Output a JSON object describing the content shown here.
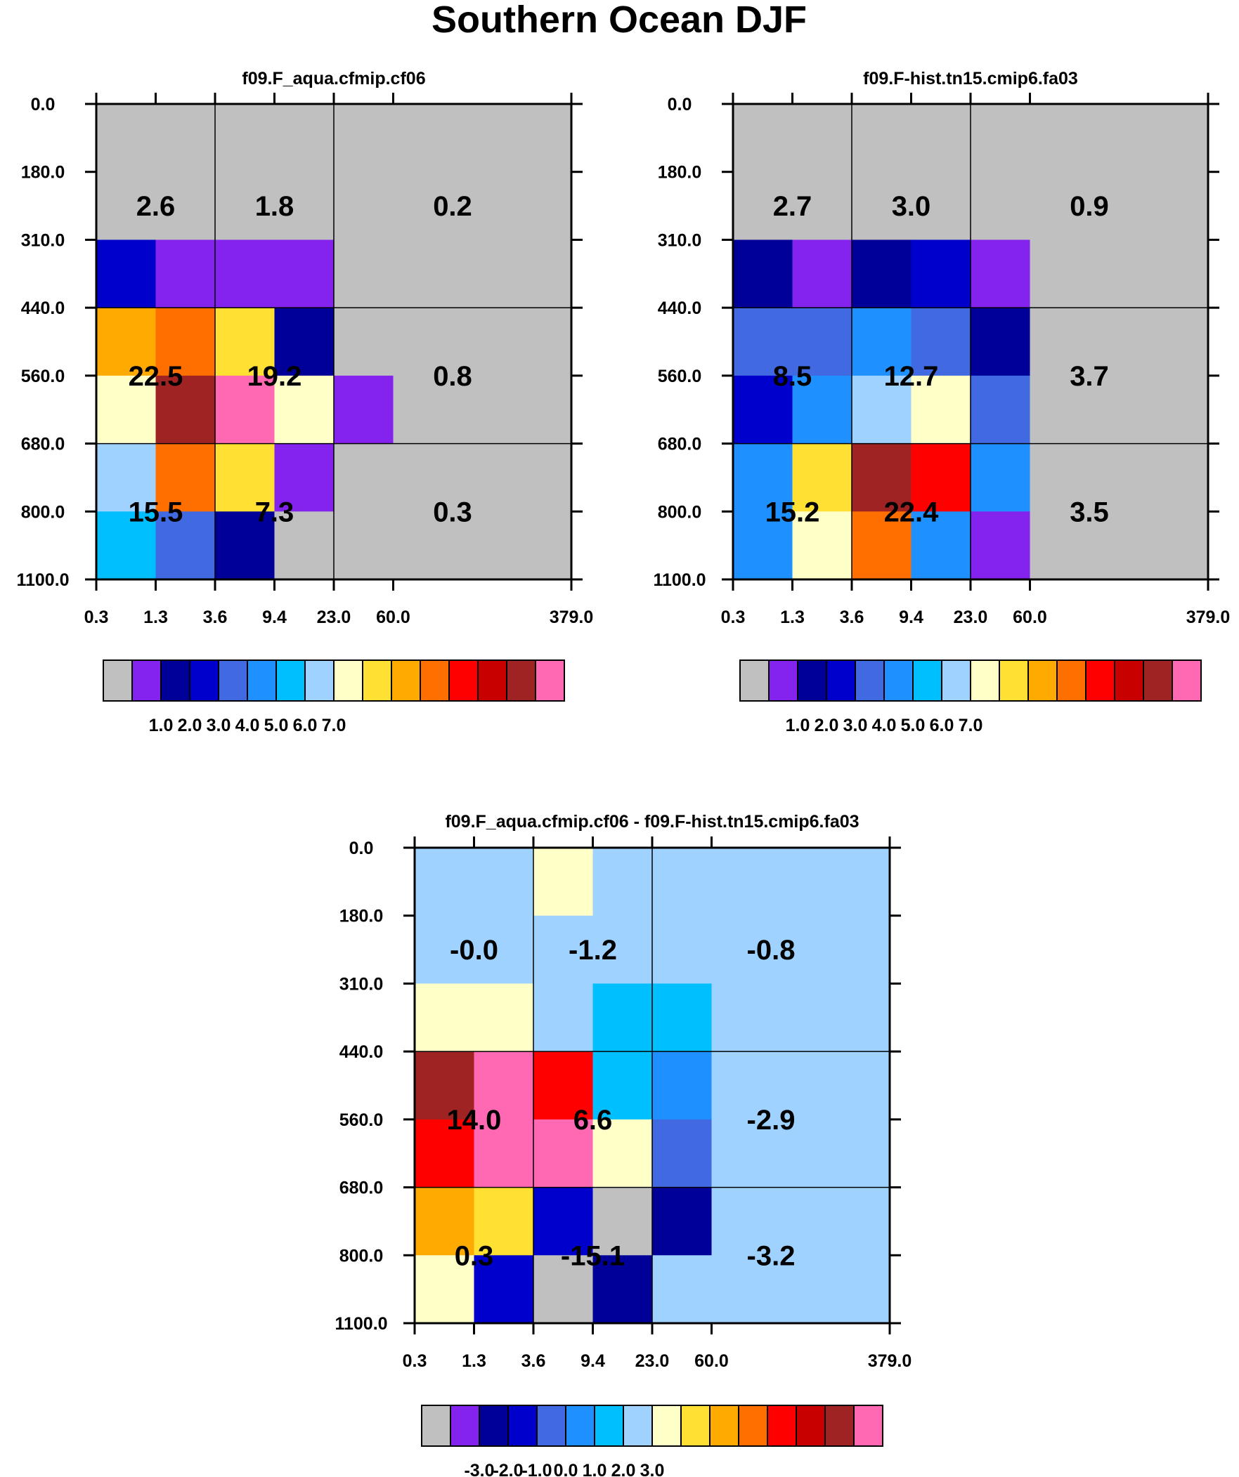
{
  "figure_title": "Southern Ocean DJF",
  "colors": {
    "ctc_palette": [
      "#c0c0c0",
      "#8422ee",
      "#000099",
      "#0000cd",
      "#4169e1",
      "#1e90ff",
      "#00bfff",
      "#a0d2ff",
      "#ffffc8",
      "#ffe033",
      "#ffaa00",
      "#ff6f00",
      "#ff0000",
      "#c80000",
      "#a02323",
      "#ff69b4"
    ],
    "grid_line": "#000000",
    "background": "#ffffff"
  },
  "chart_data": [
    {
      "type": "heatmap",
      "title": "f09.F_aqua.cfmip.cf06",
      "x_tick_labels": [
        "0.3",
        "1.3",
        "3.6",
        "9.4",
        "23.0",
        "60.0",
        "379.0"
      ],
      "y_tick_labels": [
        "0.0",
        "180.0",
        "310.0",
        "440.0",
        "560.0",
        "680.0",
        "800.0",
        "1100.0"
      ],
      "cell_color_index": [
        [
          0,
          0,
          0,
          0,
          0,
          0
        ],
        [
          0,
          0,
          0,
          0,
          0,
          0
        ],
        [
          3,
          1,
          1,
          1,
          0,
          0
        ],
        [
          10,
          11,
          9,
          2,
          0,
          0
        ],
        [
          8,
          14,
          15,
          8,
          1,
          0
        ],
        [
          7,
          11,
          9,
          1,
          0,
          0
        ],
        [
          6,
          4,
          2,
          0,
          0,
          0
        ]
      ],
      "box_values": [
        [
          "2.6",
          "1.8",
          "0.2"
        ],
        [
          "22.5",
          "19.2",
          "0.8"
        ],
        [
          "15.5",
          "7.3",
          "0.3"
        ]
      ],
      "colorbar_labels": [
        "1.0",
        "2.0",
        "3.0",
        "4.0",
        "5.0",
        "6.0",
        "7.0"
      ]
    },
    {
      "type": "heatmap",
      "title": "f09.F-hist.tn15.cmip6.fa03",
      "x_tick_labels": [
        "0.3",
        "1.3",
        "3.6",
        "9.4",
        "23.0",
        "60.0",
        "379.0"
      ],
      "y_tick_labels": [
        "0.0",
        "180.0",
        "310.0",
        "440.0",
        "560.0",
        "680.0",
        "800.0",
        "1100.0"
      ],
      "cell_color_index": [
        [
          0,
          0,
          0,
          0,
          0,
          0
        ],
        [
          0,
          0,
          0,
          0,
          0,
          0
        ],
        [
          2,
          1,
          2,
          3,
          1,
          0
        ],
        [
          4,
          4,
          5,
          4,
          2,
          0
        ],
        [
          3,
          5,
          7,
          8,
          4,
          0
        ],
        [
          5,
          9,
          14,
          12,
          5,
          0
        ],
        [
          5,
          8,
          11,
          5,
          1,
          0
        ]
      ],
      "box_values": [
        [
          "2.7",
          "3.0",
          "0.9"
        ],
        [
          "8.5",
          "12.7",
          "3.7"
        ],
        [
          "15.2",
          "22.4",
          "3.5"
        ]
      ],
      "colorbar_labels": [
        "1.0",
        "2.0",
        "3.0",
        "4.0",
        "5.0",
        "6.0",
        "7.0"
      ]
    },
    {
      "type": "heatmap",
      "title": "f09.F_aqua.cfmip.cf06 - f09.F-hist.tn15.cmip6.fa03",
      "x_tick_labels": [
        "0.3",
        "1.3",
        "3.6",
        "9.4",
        "23.0",
        "60.0",
        "379.0"
      ],
      "y_tick_labels": [
        "0.0",
        "180.0",
        "310.0",
        "440.0",
        "560.0",
        "680.0",
        "800.0",
        "1100.0"
      ],
      "cell_color_index": [
        [
          7,
          7,
          8,
          7,
          7,
          7
        ],
        [
          7,
          7,
          7,
          7,
          7,
          7
        ],
        [
          8,
          8,
          7,
          6,
          6,
          7
        ],
        [
          14,
          15,
          12,
          6,
          5,
          7
        ],
        [
          12,
          15,
          15,
          8,
          4,
          7
        ],
        [
          10,
          9,
          3,
          0,
          2,
          7
        ],
        [
          8,
          3,
          0,
          2,
          7,
          7
        ]
      ],
      "box_values": [
        [
          "-0.0",
          "-1.2",
          "-0.8"
        ],
        [
          "14.0",
          "6.6",
          "-2.9"
        ],
        [
          "0.3",
          "-15.1",
          "-3.2"
        ]
      ],
      "colorbar_labels": [
        "-3.0",
        "-2.0",
        "-1.0",
        "0.0",
        "1.0",
        "2.0",
        "3.0"
      ]
    }
  ]
}
